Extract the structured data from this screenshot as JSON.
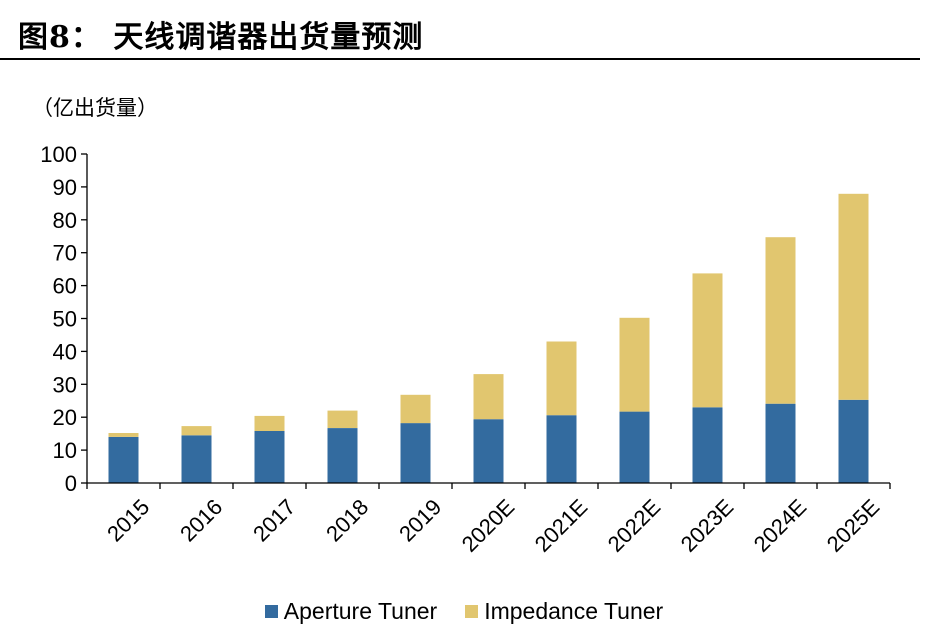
{
  "figure": {
    "title": "图8：  天线调谐器出货量预测",
    "unit_label": "（亿出货量）"
  },
  "chart_data": {
    "type": "bar",
    "stacked": true,
    "categories": [
      "2015",
      "2016",
      "2017",
      "2018",
      "2019",
      "2020E",
      "2021E",
      "2022E",
      "2023E",
      "2024E",
      "2025E"
    ],
    "series": [
      {
        "name": "Aperture Tuner",
        "color": "#336b9f",
        "values": [
          14,
          14.5,
          15.8,
          16.7,
          18.2,
          19.4,
          20.6,
          21.7,
          23,
          24.1,
          25.3
        ]
      },
      {
        "name": "Impedance Tuner",
        "color": "#e1c66f",
        "values": [
          1.2,
          2.8,
          4.6,
          5.3,
          8.6,
          13.7,
          22.4,
          28.5,
          40.7,
          50.6,
          62.6
        ]
      }
    ],
    "ylim": [
      0,
      100
    ],
    "yticks": [
      "0",
      "10",
      "20",
      "30",
      "40",
      "50",
      "60",
      "70",
      "80",
      "90",
      "100"
    ],
    "grid": false,
    "legend_position": "bottom"
  }
}
